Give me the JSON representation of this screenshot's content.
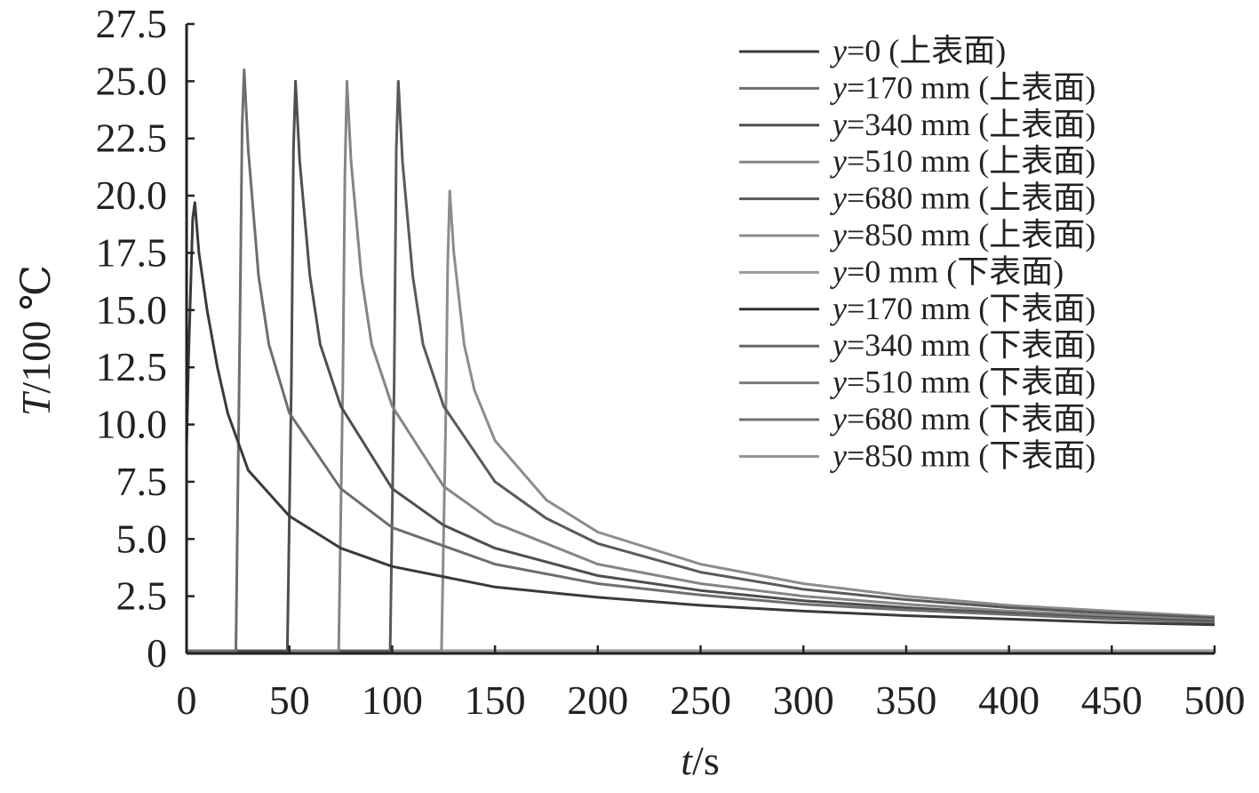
{
  "chart_data": {
    "type": "line",
    "title": "",
    "xlabel": {
      "var": "t",
      "unit": "/s"
    },
    "ylabel": {
      "var": "T",
      "unit": "/100 ℃"
    },
    "xlim": [
      0,
      500
    ],
    "ylim": [
      0,
      27.5
    ],
    "xticks": [
      "0",
      "50",
      "100",
      "150",
      "200",
      "250",
      "300",
      "350",
      "400",
      "450",
      "500"
    ],
    "yticks": [
      "0",
      "2.5",
      "5.0",
      "7.5",
      "10.0",
      "12.5",
      "15.0",
      "17.5",
      "20.0",
      "22.5",
      "25.0",
      "27.5"
    ],
    "grid": false,
    "legend_position": "top-right",
    "series": [
      {
        "name": "y=0 (上表面)",
        "color": "#3a3a3a",
        "points": [
          [
            0,
            9.0
          ],
          [
            1,
            13
          ],
          [
            2,
            16
          ],
          [
            3,
            19.0
          ],
          [
            4,
            19.7
          ],
          [
            6,
            17.5
          ],
          [
            10,
            15.0
          ],
          [
            15,
            12.5
          ],
          [
            20,
            10.5
          ],
          [
            30,
            8.0
          ],
          [
            50,
            6.0
          ],
          [
            75,
            4.6
          ],
          [
            100,
            3.8
          ],
          [
            150,
            2.9
          ],
          [
            200,
            2.45
          ],
          [
            250,
            2.1
          ],
          [
            300,
            1.85
          ],
          [
            350,
            1.65
          ],
          [
            400,
            1.5
          ],
          [
            450,
            1.35
          ],
          [
            500,
            1.25
          ]
        ]
      },
      {
        "name": "y=170 mm (上表面)",
        "color": "#6e6e6e",
        "points": [
          [
            0,
            0.1
          ],
          [
            24,
            0.1
          ],
          [
            26,
            15.0
          ],
          [
            27,
            23.0
          ],
          [
            28,
            25.5
          ],
          [
            30,
            22.0
          ],
          [
            35,
            16.5
          ],
          [
            40,
            13.5
          ],
          [
            50,
            10.5
          ],
          [
            75,
            7.2
          ],
          [
            100,
            5.5
          ],
          [
            150,
            3.9
          ],
          [
            200,
            3.05
          ],
          [
            250,
            2.55
          ],
          [
            300,
            2.15
          ],
          [
            350,
            1.9
          ],
          [
            400,
            1.7
          ],
          [
            450,
            1.5
          ],
          [
            500,
            1.35
          ]
        ]
      },
      {
        "name": "y=340 mm (上表面)",
        "color": "#4e4e4e",
        "points": [
          [
            0,
            0.1
          ],
          [
            49,
            0.1
          ],
          [
            51,
            12.0
          ],
          [
            52,
            22.0
          ],
          [
            53,
            25.0
          ],
          [
            55,
            21.5
          ],
          [
            60,
            16.5
          ],
          [
            65,
            13.5
          ],
          [
            75,
            10.8
          ],
          [
            100,
            7.2
          ],
          [
            125,
            5.6
          ],
          [
            150,
            4.6
          ],
          [
            200,
            3.4
          ],
          [
            250,
            2.75
          ],
          [
            300,
            2.3
          ],
          [
            350,
            2.0
          ],
          [
            400,
            1.75
          ],
          [
            450,
            1.55
          ],
          [
            500,
            1.4
          ]
        ]
      },
      {
        "name": "y=510 mm (上表面)",
        "color": "#858585",
        "points": [
          [
            0,
            0.1
          ],
          [
            74,
            0.1
          ],
          [
            76,
            12.0
          ],
          [
            77,
            21.0
          ],
          [
            78,
            25.0
          ],
          [
            80,
            21.5
          ],
          [
            85,
            16.5
          ],
          [
            90,
            13.5
          ],
          [
            100,
            10.8
          ],
          [
            125,
            7.3
          ],
          [
            150,
            5.7
          ],
          [
            200,
            3.9
          ],
          [
            250,
            3.05
          ],
          [
            300,
            2.5
          ],
          [
            350,
            2.15
          ],
          [
            400,
            1.85
          ],
          [
            450,
            1.65
          ],
          [
            500,
            1.45
          ]
        ]
      },
      {
        "name": "y=680 mm (上表面)",
        "color": "#5a5a5a",
        "points": [
          [
            0,
            0.1
          ],
          [
            99,
            0.1
          ],
          [
            101,
            12.0
          ],
          [
            102,
            22.0
          ],
          [
            103,
            25.0
          ],
          [
            105,
            21.5
          ],
          [
            110,
            16.5
          ],
          [
            115,
            13.5
          ],
          [
            125,
            10.8
          ],
          [
            150,
            7.5
          ],
          [
            175,
            5.9
          ],
          [
            200,
            4.8
          ],
          [
            250,
            3.55
          ],
          [
            300,
            2.8
          ],
          [
            350,
            2.35
          ],
          [
            400,
            2.0
          ],
          [
            450,
            1.75
          ],
          [
            500,
            1.55
          ]
        ]
      },
      {
        "name": "y=850 mm (上表面)",
        "color": "#8c8c8c",
        "points": [
          [
            0,
            0.1
          ],
          [
            124,
            0.1
          ],
          [
            126,
            10.0
          ],
          [
            127,
            17.0
          ],
          [
            128,
            20.2
          ],
          [
            130,
            17.5
          ],
          [
            135,
            13.5
          ],
          [
            140,
            11.5
          ],
          [
            150,
            9.3
          ],
          [
            175,
            6.7
          ],
          [
            200,
            5.3
          ],
          [
            250,
            3.9
          ],
          [
            300,
            3.05
          ],
          [
            350,
            2.5
          ],
          [
            400,
            2.1
          ],
          [
            450,
            1.85
          ],
          [
            500,
            1.6
          ]
        ]
      },
      {
        "name": "y=0 mm (下表面)",
        "color": "#9a9a9a",
        "points": [
          [
            0,
            0.1
          ],
          [
            500,
            0.1
          ]
        ]
      },
      {
        "name": "y=170 mm (下表面)",
        "color": "#2e2e2e",
        "points": [
          [
            0,
            0.1
          ],
          [
            500,
            0.1
          ]
        ]
      },
      {
        "name": "y=340 mm (下表面)",
        "color": "#666666",
        "points": [
          [
            0,
            0.1
          ],
          [
            500,
            0.1
          ]
        ]
      },
      {
        "name": "y=510 mm (下表面)",
        "color": "#7a7a7a",
        "points": [
          [
            0,
            0.1
          ],
          [
            500,
            0.1
          ]
        ]
      },
      {
        "name": "y=680 mm (下表面)",
        "color": "#707070",
        "points": [
          [
            0,
            0.1
          ],
          [
            500,
            0.1
          ]
        ]
      },
      {
        "name": "y=850 mm (下表面)",
        "color": "#939393",
        "points": [
          [
            0,
            0.1
          ],
          [
            500,
            0.1
          ]
        ]
      }
    ]
  }
}
